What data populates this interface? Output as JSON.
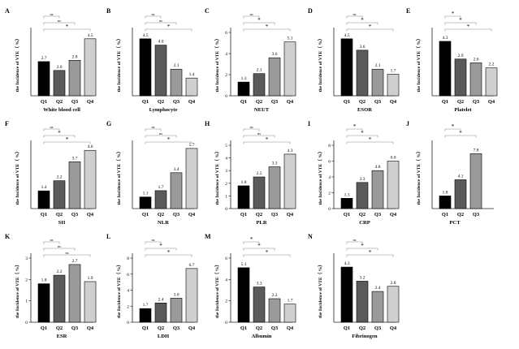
{
  "figure": {
    "ylabel": "the Incidence of VTE（ %）"
  },
  "colors": {
    "Q1": "#000000",
    "Q2": "#5a5a5a",
    "Q3": "#9a9a9a",
    "Q4": "#cfcfcf",
    "axis": "#222222",
    "bracket": "#8a8a8a"
  },
  "chart_data": [
    {
      "type": "bar",
      "letter": "A",
      "title": "",
      "xlabel": "White blood cell",
      "categories": [
        "Q1",
        "Q2",
        "Q3",
        "Q4"
      ],
      "values": [
        2.7,
        2.0,
        2.8,
        4.5
      ],
      "value_labels": [
        "2.7",
        "2.0",
        "2.8",
        "4.5"
      ],
      "yticks": [],
      "ylim": [
        0,
        5
      ],
      "brackets": [
        {
          "from": 0,
          "to": 1,
          "label": "ns"
        },
        {
          "from": 0,
          "to": 2,
          "label": "ns"
        },
        {
          "from": 0,
          "to": 3,
          "label": "*"
        }
      ]
    },
    {
      "type": "bar",
      "letter": "B",
      "title": "",
      "xlabel": "Lymphocyte",
      "categories": [
        "Q1",
        "Q2",
        "Q3",
        "Q4"
      ],
      "values": [
        4.5,
        4.0,
        2.1,
        1.4
      ],
      "value_labels": [
        "4.5",
        "4.0",
        "2.1",
        "1.4"
      ],
      "yticks": [],
      "ylim": [
        0,
        5
      ],
      "brackets": [
        {
          "from": 0,
          "to": 1,
          "label": "ns"
        },
        {
          "from": 0,
          "to": 2,
          "label": "ns"
        },
        {
          "from": 0,
          "to": 3,
          "label": "*"
        }
      ]
    },
    {
      "type": "bar",
      "letter": "C",
      "title": "",
      "xlabel": "NEUT",
      "categories": [
        "Q1",
        "Q2",
        "Q3",
        "Q4"
      ],
      "values": [
        1.3,
        2.1,
        3.6,
        5.1
      ],
      "value_labels": [
        "1.3",
        "2.1",
        "3.6",
        "5.1"
      ],
      "yticks": [
        "0",
        "2",
        "4",
        "6"
      ],
      "ylim": [
        0,
        6
      ],
      "brackets": [
        {
          "from": 0,
          "to": 1,
          "label": "ns"
        },
        {
          "from": 0,
          "to": 2,
          "label": "*"
        },
        {
          "from": 0,
          "to": 3,
          "label": "*"
        }
      ]
    },
    {
      "type": "bar",
      "letter": "D",
      "title": "",
      "xlabel": "ESOR",
      "categories": [
        "Q1",
        "Q2",
        "Q3",
        "Q4"
      ],
      "values": [
        4.5,
        3.6,
        2.1,
        1.7
      ],
      "value_labels": [
        "4.5",
        "3.6",
        "2.1",
        "1.7"
      ],
      "yticks": [],
      "ylim": [
        0,
        5
      ],
      "brackets": [
        {
          "from": 0,
          "to": 1,
          "label": "ns"
        },
        {
          "from": 0,
          "to": 2,
          "label": "*"
        },
        {
          "from": 0,
          "to": 3,
          "label": "*"
        }
      ]
    },
    {
      "type": "bar",
      "letter": "E",
      "title": "",
      "xlabel": "Platelet",
      "categories": [
        "Q1",
        "Q2",
        "Q3",
        "Q4"
      ],
      "values": [
        4.3,
        2.9,
        2.6,
        2.2
      ],
      "value_labels": [
        "4.3",
        "2.9",
        "2.6",
        "2.2"
      ],
      "yticks": [],
      "ylim": [
        0,
        5
      ],
      "brackets": [
        {
          "from": 0,
          "to": 1,
          "label": "*"
        },
        {
          "from": 0,
          "to": 2,
          "label": "*"
        },
        {
          "from": 0,
          "to": 3,
          "label": "*"
        }
      ]
    },
    {
      "type": "bar",
      "letter": "F",
      "title": "",
      "xlabel": "SII",
      "categories": [
        "Q1",
        "Q2",
        "Q3",
        "Q4"
      ],
      "values": [
        1.4,
        2.2,
        3.7,
        4.6
      ],
      "value_labels": [
        "1.4",
        "2.2",
        "3.7",
        "4.6"
      ],
      "yticks": [],
      "ylim": [
        0,
        5
      ],
      "brackets": [
        {
          "from": 0,
          "to": 1,
          "label": "ns"
        },
        {
          "from": 0,
          "to": 2,
          "label": "*"
        },
        {
          "from": 0,
          "to": 3,
          "label": "*"
        }
      ]
    },
    {
      "type": "bar",
      "letter": "G",
      "title": "",
      "xlabel": "NLR",
      "categories": [
        "Q1",
        "Q2",
        "Q3",
        "Q4"
      ],
      "values": [
        1.1,
        1.7,
        3.4,
        5.7
      ],
      "value_labels": [
        "1.1",
        "1.7",
        "3.4",
        "5.7"
      ],
      "yticks": [],
      "ylim": [
        0,
        6
      ],
      "brackets": [
        {
          "from": 0,
          "to": 1,
          "label": "ns"
        },
        {
          "from": 0,
          "to": 2,
          "label": "ns"
        },
        {
          "from": 0,
          "to": 3,
          "label": "*"
        }
      ]
    },
    {
      "type": "bar",
      "letter": "H",
      "title": "",
      "xlabel": "PLR",
      "categories": [
        "Q1",
        "Q2",
        "Q3",
        "Q4"
      ],
      "values": [
        1.8,
        2.5,
        3.3,
        4.3
      ],
      "value_labels": [
        "1.8",
        "2.5",
        "3.3",
        "4.3"
      ],
      "yticks": [
        "0",
        "1",
        "2",
        "3",
        "4",
        "5"
      ],
      "ylim": [
        0,
        5
      ],
      "brackets": [
        {
          "from": 0,
          "to": 1,
          "label": "ns"
        },
        {
          "from": 0,
          "to": 2,
          "label": "ns"
        },
        {
          "from": 0,
          "to": 3,
          "label": "*"
        }
      ]
    },
    {
      "type": "bar",
      "letter": "I",
      "title": "",
      "xlabel": "CRP",
      "categories": [
        "Q1",
        "Q2",
        "Q3",
        "Q4"
      ],
      "values": [
        1.3,
        3.3,
        4.8,
        6.0
      ],
      "value_labels": [
        "1.3",
        "3.3",
        "4.8",
        "6.0"
      ],
      "yticks": [
        "0",
        "2",
        "4",
        "6",
        "8"
      ],
      "ylim": [
        0,
        8
      ],
      "brackets": [
        {
          "from": 0,
          "to": 1,
          "label": "*"
        },
        {
          "from": 0,
          "to": 2,
          "label": "*"
        },
        {
          "from": 0,
          "to": 3,
          "label": "*"
        }
      ]
    },
    {
      "type": "bar",
      "letter": "J",
      "title": "",
      "xlabel": "PCT",
      "categories": [
        "Q1",
        "Q2",
        "Q3"
      ],
      "values": [
        1.8,
        4.1,
        7.8
      ],
      "value_labels": [
        "1.8",
        "4.1",
        "7.8"
      ],
      "yticks": [],
      "ylim": [
        0,
        9
      ],
      "brackets": [
        {
          "from": 0,
          "to": 1,
          "label": "*"
        },
        {
          "from": 0,
          "to": 2,
          "label": "*"
        }
      ]
    },
    {
      "type": "bar",
      "letter": "K",
      "title": "",
      "xlabel": "ESR",
      "categories": [
        "Q1",
        "Q2",
        "Q3",
        "Q4"
      ],
      "values": [
        1.8,
        2.2,
        2.7,
        1.9
      ],
      "value_labels": [
        "1.8",
        "2.2",
        "2.7",
        "1.9"
      ],
      "yticks": [
        "0",
        "1",
        "2",
        "3"
      ],
      "ylim": [
        0,
        3
      ],
      "brackets": [
        {
          "from": 0,
          "to": 1,
          "label": "ns"
        },
        {
          "from": 0,
          "to": 2,
          "label": "ns"
        },
        {
          "from": 0,
          "to": 3,
          "label": "ns"
        }
      ]
    },
    {
      "type": "bar",
      "letter": "L",
      "title": "",
      "xlabel": "LDH",
      "categories": [
        "Q1",
        "Q2",
        "Q3",
        "Q4"
      ],
      "values": [
        1.7,
        2.4,
        3.0,
        6.7
      ],
      "value_labels": [
        "1.7",
        "2.4",
        "3.0",
        "6.7"
      ],
      "yticks": [
        "0",
        "2",
        "4",
        "6",
        "8"
      ],
      "ylim": [
        0,
        8
      ],
      "brackets": [
        {
          "from": 0,
          "to": 1,
          "label": "ns"
        },
        {
          "from": 0,
          "to": 2,
          "label": "*"
        },
        {
          "from": 0,
          "to": 3,
          "label": "*"
        }
      ]
    },
    {
      "type": "bar",
      "letter": "M",
      "title": "",
      "xlabel": "Albumin",
      "categories": [
        "Q1",
        "Q2",
        "Q3",
        "Q4"
      ],
      "values": [
        5.1,
        3.3,
        2.2,
        1.7
      ],
      "value_labels": [
        "5.1",
        "3.3",
        "2.2",
        "1.7"
      ],
      "yticks": [
        "0",
        "2",
        "4",
        "6"
      ],
      "ylim": [
        0,
        6
      ],
      "brackets": [
        {
          "from": 0,
          "to": 1,
          "label": "*"
        },
        {
          "from": 0,
          "to": 2,
          "label": "*"
        },
        {
          "from": 0,
          "to": 3,
          "label": "*"
        }
      ]
    },
    {
      "type": "bar",
      "letter": "N",
      "title": "",
      "xlabel": "Fibrinogen",
      "categories": [
        "Q1",
        "Q2",
        "Q3",
        "Q4"
      ],
      "values": [
        4.3,
        3.2,
        2.4,
        2.8
      ],
      "value_labels": [
        "4.3",
        "3.2",
        "2.4",
        "2.8"
      ],
      "yticks": [],
      "ylim": [
        0,
        5
      ],
      "brackets": [
        {
          "from": 0,
          "to": 1,
          "label": "ns"
        },
        {
          "from": 0,
          "to": 2,
          "label": "*"
        },
        {
          "from": 0,
          "to": 3,
          "label": "*"
        }
      ]
    }
  ]
}
